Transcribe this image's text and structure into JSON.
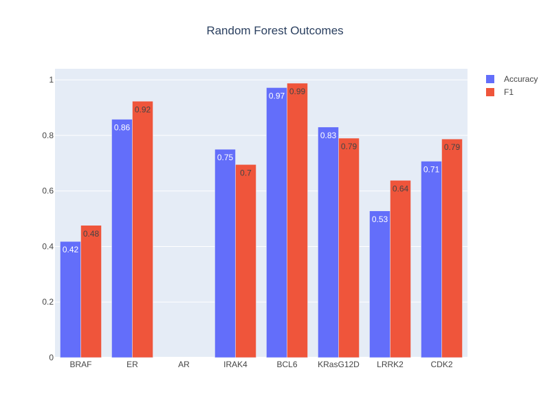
{
  "chart_data": {
    "type": "bar",
    "title": "Random Forest Outcomes",
    "xlabel": "",
    "ylabel": "",
    "categories": [
      "BRAF",
      "ER",
      "AR",
      "IRAK4",
      "BCL6",
      "KRasG12D",
      "LRRK2",
      "CDK2"
    ],
    "series": [
      {
        "name": "Accuracy",
        "values": [
          0.418,
          0.858,
          null,
          0.75,
          0.972,
          0.83,
          0.528,
          0.707
        ],
        "labels": [
          "0.42",
          "0.86",
          "",
          "0.75",
          "0.97",
          "0.83",
          "0.53",
          "0.71"
        ]
      },
      {
        "name": "F1",
        "values": [
          0.476,
          0.923,
          null,
          0.695,
          0.988,
          0.79,
          0.638,
          0.787
        ],
        "labels": [
          "0.48",
          "0.92",
          "",
          "0.7",
          "0.99",
          "0.79",
          "0.64",
          "0.79"
        ]
      }
    ],
    "ylim": [
      0,
      1.04
    ],
    "yticks": [
      0,
      0.2,
      0.4,
      0.6,
      0.8,
      1
    ],
    "ytick_labels": [
      "0",
      "0.2",
      "0.4",
      "0.6",
      "0.8",
      "1"
    ],
    "grid": true,
    "legend_position": "top-right",
    "colors": {
      "Accuracy": "#636efa",
      "F1": "#ef553b",
      "plot_background": "#e5ecf6",
      "gridline": "#ffffff",
      "title_text": "#2a3f5f",
      "tick_text": "#444444"
    }
  }
}
